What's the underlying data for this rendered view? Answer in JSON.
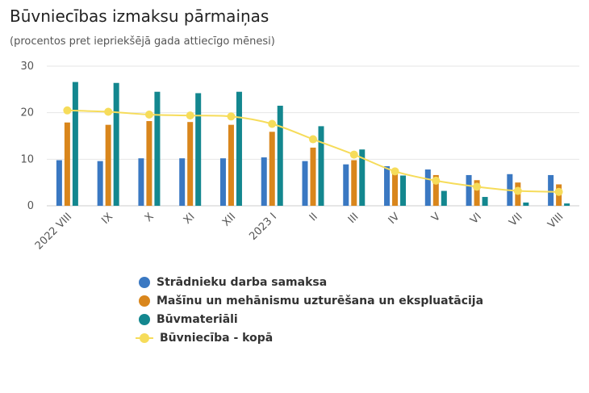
{
  "title": "Būvniecības izmaksu pārmaiņas",
  "subtitle": "(procentos pret iepriekšējā gada attiecīgo mēnesi)",
  "chart_data": {
    "type": "bar",
    "categories": [
      "2022 VIII",
      "IX",
      "X",
      "XI",
      "XII",
      "2023 I",
      "II",
      "III",
      "IV",
      "V",
      "VI",
      "VII",
      "VIII"
    ],
    "ylim": [
      0,
      30
    ],
    "yticks": [
      0,
      10,
      20,
      30
    ],
    "grid": true,
    "legend_position": "bottom",
    "series": [
      {
        "name": "Strādnieku darba samaksa",
        "type": "bar",
        "color": "#3a78c2",
        "values": [
          9.8,
          9.6,
          10.2,
          10.2,
          10.2,
          10.4,
          9.6,
          8.9,
          8.5,
          7.8,
          6.6,
          6.8,
          6.6
        ]
      },
      {
        "name": "Mašīnu un mehānismu uzturēšana un ekspluatācija",
        "type": "bar",
        "color": "#d9861c",
        "values": [
          17.9,
          17.4,
          18.2,
          18.0,
          17.4,
          15.9,
          12.5,
          9.8,
          7.7,
          6.6,
          5.5,
          5.0,
          4.6
        ]
      },
      {
        "name": "Būvmateriāli",
        "type": "bar",
        "color": "#13878f",
        "values": [
          26.6,
          26.4,
          24.5,
          24.2,
          24.5,
          21.5,
          17.1,
          12.1,
          6.5,
          3.2,
          1.9,
          0.7,
          0.5
        ]
      },
      {
        "name": "Būvniecība - kopā",
        "type": "line",
        "color": "#f6dc5a",
        "values": [
          20.5,
          20.2,
          19.6,
          19.4,
          19.2,
          17.6,
          14.3,
          11.0,
          7.4,
          5.4,
          4.1,
          3.2,
          3.0
        ]
      }
    ]
  }
}
